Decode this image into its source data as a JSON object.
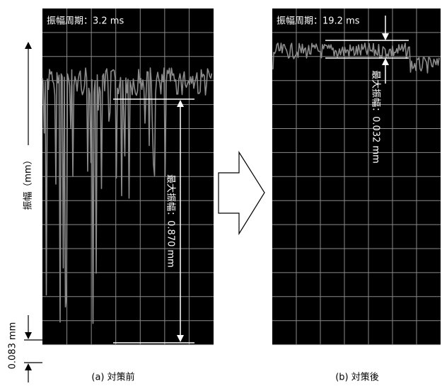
{
  "y_axis_label": "振幅（mm）",
  "scale_label": "0.083 mm",
  "panels": [
    {
      "period": "振幅周期：3.2 ms",
      "max_amplitude": "最大振幅：0.870 mm",
      "caption": "(a) 対策前"
    },
    {
      "period": "振幅周期：19.2 ms",
      "max_amplitude": "最大振幅：0.032 mm",
      "caption": "(b) 対策後"
    }
  ]
}
